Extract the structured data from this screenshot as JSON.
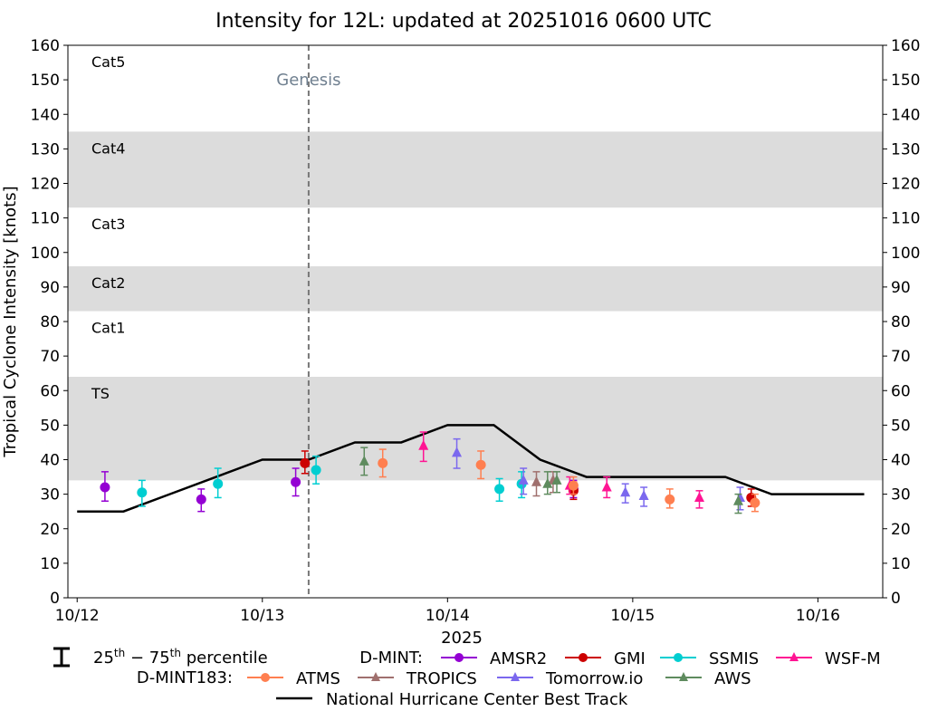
{
  "chart_data": {
    "type": "line",
    "title": "Intensity for 12L: updated at 20251016 0600 UTC",
    "ylabel": "Tropical Cyclone Intensity [knots]",
    "xlabel": "2025",
    "ylim": [
      0,
      160
    ],
    "xlim": [
      -0.05,
      4.35
    ],
    "y_ticks": [
      "0",
      "10",
      "20",
      "30",
      "40",
      "50",
      "60",
      "70",
      "80",
      "90",
      "100",
      "110",
      "120",
      "130",
      "140",
      "150",
      "160"
    ],
    "x_ticks": [
      {
        "value": 0,
        "label": "10/12"
      },
      {
        "value": 1,
        "label": "10/13"
      },
      {
        "value": 2,
        "label": "10/14"
      },
      {
        "value": 3,
        "label": "10/15"
      },
      {
        "value": 4,
        "label": "10/16"
      }
    ],
    "x_units": "days since 10/12 00 UTC",
    "categories": [
      {
        "label": "TS",
        "from": 34,
        "to": 64,
        "shaded": true
      },
      {
        "label": "Cat1",
        "from": 64,
        "to": 83,
        "shaded": false
      },
      {
        "label": "Cat2",
        "from": 83,
        "to": 96,
        "shaded": true
      },
      {
        "label": "Cat3",
        "from": 96,
        "to": 113,
        "shaded": false
      },
      {
        "label": "Cat4",
        "from": 113,
        "to": 135,
        "shaded": true
      },
      {
        "label": "Cat5",
        "from": 135,
        "to": 160,
        "shaded": false
      }
    ],
    "genesis": {
      "x": 1.25,
      "label": "Genesis"
    },
    "best_track": {
      "name": "National Hurricane Center Best Track",
      "color": "#000000",
      "x": [
        0,
        0.25,
        0.5,
        0.75,
        1.0,
        1.25,
        1.5,
        1.75,
        2.0,
        2.25,
        2.5,
        2.75,
        3.0,
        3.25,
        3.5,
        3.75,
        4.0,
        4.25
      ],
      "y": [
        25,
        25,
        30,
        35,
        40,
        40,
        45,
        45,
        50,
        50,
        40,
        35,
        35,
        35,
        35,
        30,
        30,
        30
      ]
    },
    "series": [
      {
        "name": "AMSR2",
        "group": "D-MINT",
        "marker": "circle",
        "color": "#9400D3",
        "points": [
          [
            0.15,
            32,
            28,
            36.5
          ],
          [
            0.67,
            28.5,
            25,
            31.5
          ],
          [
            1.18,
            33.5,
            29.5,
            37.5
          ],
          [
            2.68,
            31.5,
            29,
            34
          ]
        ]
      },
      {
        "name": "GMI",
        "group": "D-MINT",
        "marker": "circle",
        "color": "#CC0000",
        "points": [
          [
            1.23,
            39,
            36,
            42.5
          ],
          [
            2.68,
            31,
            28.5,
            33.5
          ],
          [
            3.64,
            29,
            26.5,
            31.5
          ]
        ]
      },
      {
        "name": "SSMIS",
        "group": "D-MINT",
        "marker": "circle",
        "color": "#00CED1",
        "points": [
          [
            0.35,
            30.5,
            26.5,
            34
          ],
          [
            0.76,
            33,
            29,
            37.5
          ],
          [
            1.29,
            37,
            33,
            41
          ],
          [
            2.28,
            31.5,
            28,
            34.5
          ],
          [
            2.4,
            33,
            29,
            36.5
          ]
        ]
      },
      {
        "name": "WSF-M",
        "group": "D-MINT",
        "marker": "triangle",
        "color": "#FF1493",
        "points": [
          [
            1.87,
            44,
            39.5,
            48
          ],
          [
            2.66,
            32.5,
            30,
            35
          ],
          [
            2.86,
            32,
            29,
            35
          ],
          [
            3.36,
            29,
            26,
            31
          ]
        ]
      },
      {
        "name": "ATMS",
        "group": "D-MINT183",
        "marker": "circle",
        "color": "#FF7F50",
        "points": [
          [
            1.65,
            39,
            35,
            43
          ],
          [
            2.18,
            38.5,
            34.5,
            42.5
          ],
          [
            2.68,
            32.5,
            30,
            35
          ],
          [
            3.2,
            28.5,
            26,
            31.5
          ],
          [
            3.66,
            27.5,
            25,
            30
          ]
        ]
      },
      {
        "name": "TROPICS",
        "group": "D-MINT183",
        "marker": "triangle",
        "color": "#A0706E",
        "points": [
          [
            2.48,
            33.5,
            29.5,
            36.5
          ],
          [
            2.57,
            34,
            30.5,
            36.5
          ]
        ]
      },
      {
        "name": "Tomorrow.io",
        "group": "D-MINT183",
        "marker": "triangle",
        "color": "#7B68EE",
        "points": [
          [
            2.05,
            42,
            37.5,
            46
          ],
          [
            2.41,
            34,
            30,
            37.5
          ],
          [
            2.96,
            30.5,
            27.5,
            33
          ],
          [
            3.06,
            29.5,
            26.5,
            32
          ],
          [
            3.58,
            29,
            25.5,
            32
          ]
        ]
      },
      {
        "name": "AWS",
        "group": "D-MINT183",
        "marker": "triangle",
        "color": "#5E8B5E",
        "points": [
          [
            1.55,
            39.5,
            35.5,
            43.5
          ],
          [
            2.54,
            33,
            30,
            36.5
          ],
          [
            2.59,
            34,
            30.5,
            36.5
          ],
          [
            3.57,
            28,
            24.5,
            30
          ]
        ]
      }
    ],
    "legend": {
      "percentile_label": "25th – 75th percentile",
      "percentile_sup_a": "th",
      "percentile_sup_b": "th",
      "percentile_pre": "25",
      "percentile_mid": " − 75",
      "percentile_post": " percentile",
      "group1_label": "D-MINT:",
      "group2_label": "D-MINT183:",
      "placement": "bottom"
    }
  }
}
